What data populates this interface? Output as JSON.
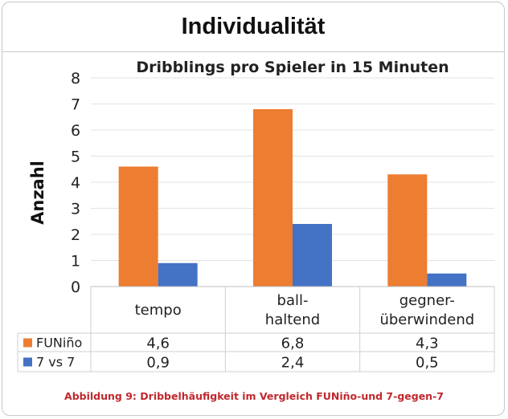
{
  "page": {
    "header_title": "Individualität",
    "caption": "Abbildung 9: Dribbelhäufigkeit im Vergleich FUNiño-und 7-gegen-7"
  },
  "chart_data": {
    "type": "bar",
    "title": "Dribblings pro Spieler in 15 Minuten",
    "ylabel": "Anzahl",
    "xlabel": "",
    "ylim": [
      0,
      8
    ],
    "yticks": [
      0,
      1,
      2,
      3,
      4,
      5,
      6,
      7,
      8
    ],
    "categories": [
      [
        "tempo"
      ],
      [
        "ball-",
        "haltend"
      ],
      [
        "gegner-",
        "überwindend"
      ]
    ],
    "series": [
      {
        "name": "FUNiño",
        "color": "#ed7d31",
        "values": [
          4.6,
          6.8,
          4.3
        ],
        "labels": [
          "4,6",
          "6,8",
          "4,3"
        ]
      },
      {
        "name": "7 vs 7",
        "color": "#4472c4",
        "values": [
          0.9,
          2.4,
          0.5
        ],
        "labels": [
          "0,9",
          "2,4",
          "0,5"
        ]
      }
    ],
    "legend": "data-table-left"
  }
}
